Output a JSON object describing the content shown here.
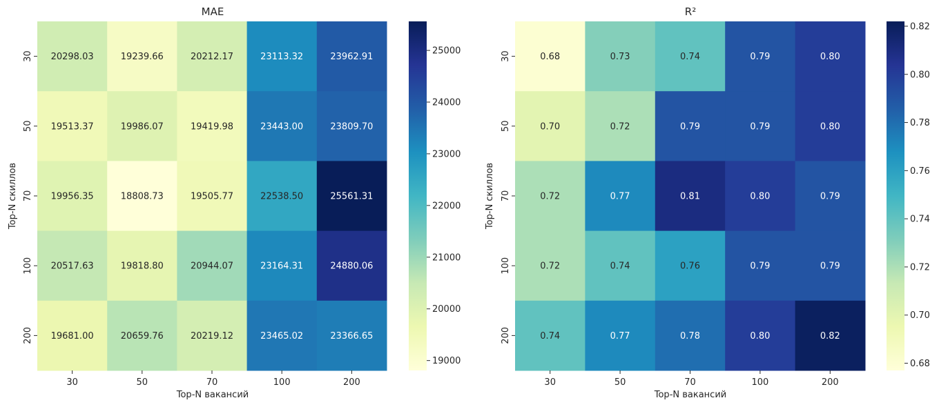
{
  "chart_data": [
    {
      "type": "heatmap",
      "title": "MAE",
      "xlabel": "Top-N вакансий",
      "ylabel": "Top-N скиллов",
      "x_categories": [
        "30",
        "50",
        "70",
        "100",
        "200"
      ],
      "y_categories": [
        "30",
        "50",
        "70",
        "100",
        "200"
      ],
      "values": [
        [
          20298.03,
          19239.66,
          20212.17,
          23113.32,
          23962.91
        ],
        [
          19513.37,
          19986.07,
          19419.98,
          23443.0,
          23809.7
        ],
        [
          19956.35,
          18808.73,
          19505.77,
          22538.5,
          25561.31
        ],
        [
          20517.63,
          19818.8,
          20944.07,
          23164.31,
          24880.06
        ],
        [
          19681.0,
          20659.76,
          20219.12,
          23465.02,
          23366.65
        ]
      ],
      "value_format": 2,
      "colormap": "YlGnBu",
      "vmin": 18808.73,
      "vmax": 25561.31,
      "colorbar_ticks": [
        "19000",
        "20000",
        "21000",
        "22000",
        "23000",
        "24000",
        "25000"
      ],
      "colorbar_tick_values": [
        19000,
        20000,
        21000,
        22000,
        23000,
        24000,
        25000
      ]
    },
    {
      "type": "heatmap",
      "title": "R²",
      "xlabel": "Top-N вакансий",
      "ylabel": "Top-N скиллов",
      "x_categories": [
        "30",
        "50",
        "70",
        "100",
        "200"
      ],
      "y_categories": [
        "30",
        "50",
        "70",
        "100",
        "200"
      ],
      "values": [
        [
          0.68,
          0.73,
          0.74,
          0.79,
          0.8
        ],
        [
          0.7,
          0.72,
          0.79,
          0.79,
          0.8
        ],
        [
          0.72,
          0.77,
          0.81,
          0.8,
          0.79
        ],
        [
          0.72,
          0.74,
          0.76,
          0.79,
          0.79
        ],
        [
          0.74,
          0.77,
          0.78,
          0.8,
          0.82
        ]
      ],
      "value_format": 2,
      "colormap": "YlGnBu",
      "vmin": 0.677,
      "vmax": 0.822,
      "colorbar_ticks": [
        "0.68",
        "0.70",
        "0.72",
        "0.74",
        "0.76",
        "0.78",
        "0.80",
        "0.82"
      ],
      "colorbar_tick_values": [
        0.68,
        0.7,
        0.72,
        0.74,
        0.76,
        0.78,
        0.8,
        0.82
      ]
    }
  ],
  "colormap_stops": [
    "#ffffd9",
    "#edf8b1",
    "#c7e9b4",
    "#7fcdbb",
    "#41b6c4",
    "#1d91c0",
    "#225ea8",
    "#253494",
    "#081d58"
  ]
}
